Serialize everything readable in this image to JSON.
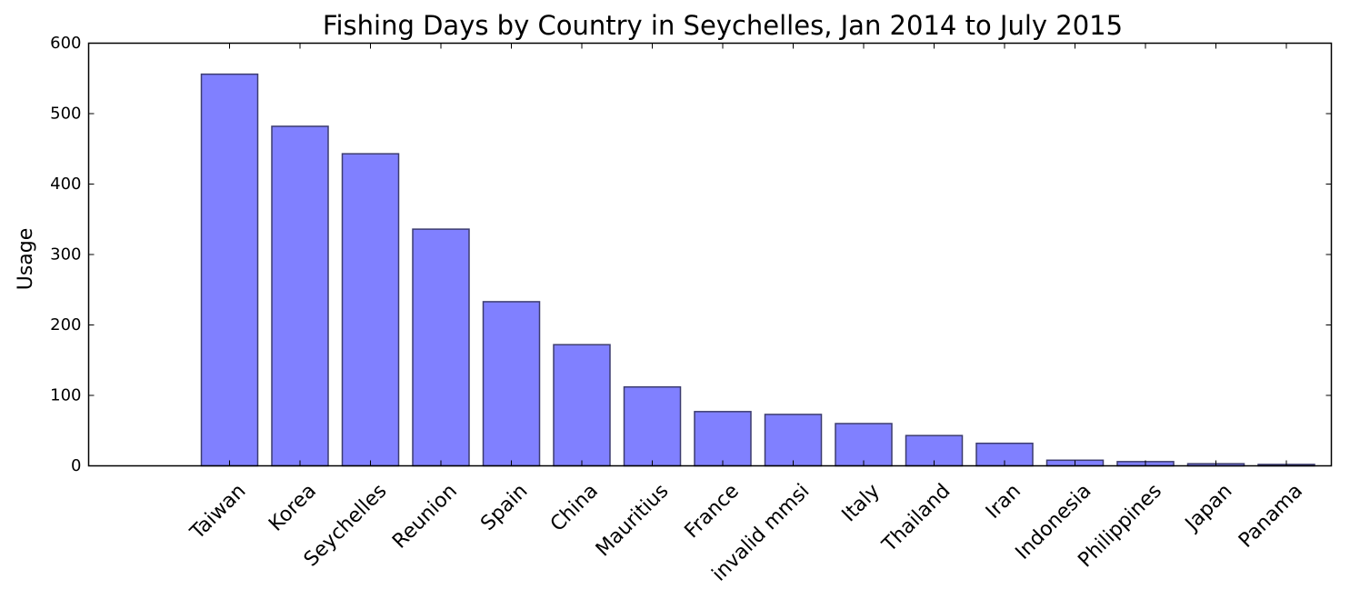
{
  "chart_data": {
    "type": "bar",
    "title": "Fishing Days by Country in Seychelles, Jan 2014 to July 2015",
    "xlabel": "",
    "ylabel": "Usage",
    "ylim": [
      0,
      600
    ],
    "yticks": [
      0,
      100,
      200,
      300,
      400,
      500,
      600
    ],
    "grid": false,
    "bar_color": "#8080ff",
    "bar_edge_color": "#3c3c6e",
    "categories": [
      "Taiwan",
      "Korea",
      "Seychelles",
      "Reunion",
      "Spain",
      "China",
      "Mauritius",
      "France",
      "invalid mmsi",
      "Italy",
      "Thailand",
      "Iran",
      "Indonesia",
      "Philippines",
      "Japan",
      "Panama"
    ],
    "values": [
      556,
      482,
      443,
      336,
      233,
      172,
      112,
      77,
      73,
      60,
      43,
      32,
      8,
      6,
      3,
      2
    ]
  }
}
